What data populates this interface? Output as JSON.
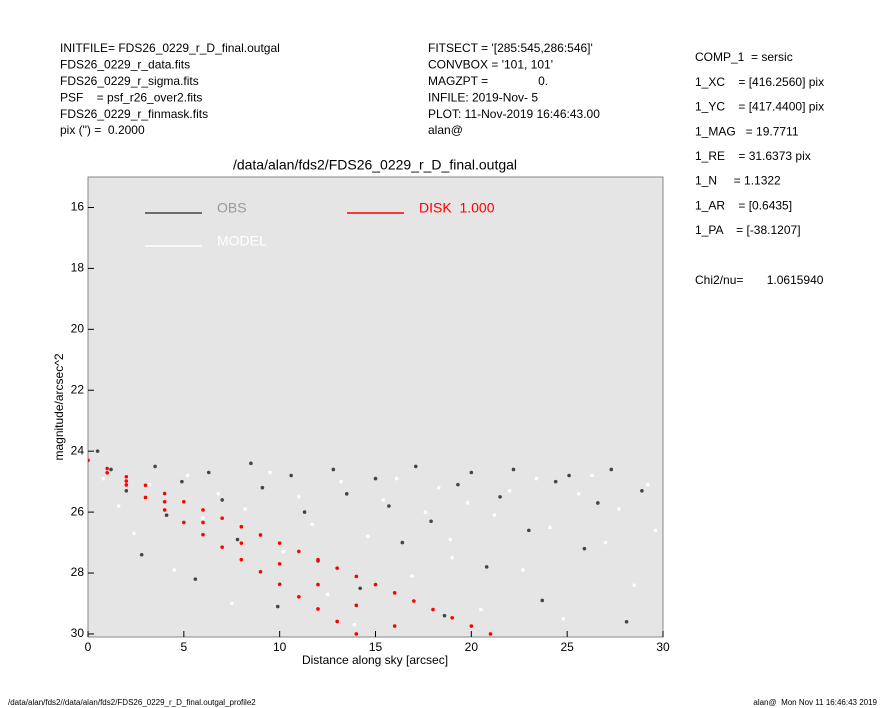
{
  "info_left": [
    "INITFILE= FDS26_0229_r_D_final.outgal",
    "FDS26_0229_r_data.fits",
    "FDS26_0229_r_sigma.fits",
    "PSF    = psf_r26_over2.fits",
    "FDS26_0229_r_finmask.fits",
    "pix (\") =  0.2000"
  ],
  "info_middle": [
    "FITSECT = '[285:545,286:546]'",
    "CONVBOX = '101, 101'",
    "MAGZPT =               0.",
    "INFILE: 2019-Nov- 5",
    "PLOT: 11-Nov-2019 16:46:43.00",
    "alan@"
  ],
  "info_right": [
    "COMP_1  = sersic",
    "1_XC    = [416.2560] pix",
    "1_YC    = [417.4400] pix",
    "1_MAG   = 19.7711",
    "1_RE    = 31.6373 pix",
    "1_N     = 1.1322",
    "1_AR    = [0.6435]",
    "1_PA    = [-38.1207]"
  ],
  "chi2": "Chi2/nu=       1.0615940",
  "footer_left": "/data/alan/fds2//data/alan/fds2/FDS26_0229_r_D_final.outgal_profile2",
  "footer_right": "alan@  Mon Nov 11 16:46:43 2019",
  "chart_data": {
    "type": "scatter",
    "title": "/data/alan/fds2/FDS26_0229_r_D_final.outgal",
    "xlabel": "Distance along sky [arcsec]",
    "ylabel": "magnitude/arcsec^2",
    "xlim": [
      0,
      30
    ],
    "ylim": [
      30.1,
      15
    ],
    "xticks": [
      0,
      5,
      10,
      15,
      20,
      25,
      30
    ],
    "yticks": [
      16,
      18,
      20,
      22,
      24,
      26,
      28,
      30
    ],
    "legend": "upper left",
    "background": "#e5e5e5",
    "series": [
      {
        "name": "OBS",
        "color": "#444444",
        "x": [
          0.5,
          1.2,
          2.0,
          2.8,
          3.5,
          4.1,
          4.9,
          5.6,
          6.3,
          7.0,
          7.8,
          8.5,
          9.1,
          9.9,
          10.6,
          11.3,
          12.0,
          12.8,
          13.5,
          14.2,
          15.0,
          15.7,
          16.4,
          17.1,
          17.9,
          18.6,
          19.3,
          20.0,
          20.8,
          21.5,
          22.2,
          23.0,
          23.7,
          24.4,
          25.1,
          25.9,
          26.6,
          27.3,
          28.1,
          28.9
        ],
        "values": [
          24.0,
          24.6,
          25.3,
          27.4,
          24.5,
          26.1,
          25.0,
          28.2,
          24.7,
          25.6,
          26.9,
          24.4,
          25.2,
          29.1,
          24.8,
          26.0,
          27.6,
          24.6,
          25.4,
          28.5,
          24.9,
          25.8,
          27.0,
          24.5,
          26.3,
          29.4,
          25.1,
          24.7,
          27.8,
          25.5,
          24.6,
          26.6,
          28.9,
          25.0,
          24.8,
          27.2,
          25.7,
          24.6,
          29.6,
          25.3
        ]
      },
      {
        "name": "MODEL",
        "color": "#ffffff",
        "x": [
          0.8,
          1.6,
          2.4,
          3.2,
          4.5,
          5.2,
          6.0,
          6.8,
          7.5,
          8.2,
          9.5,
          10.2,
          11.0,
          11.7,
          12.5,
          13.2,
          14.6,
          15.4,
          16.1,
          16.9,
          17.6,
          18.3,
          19.0,
          19.8,
          20.5,
          21.2,
          22.0,
          22.7,
          23.4,
          24.1,
          24.8,
          25.6,
          26.3,
          27.0,
          27.7,
          28.5,
          29.2,
          29.6,
          13.9,
          18.9
        ],
        "values": [
          24.9,
          25.8,
          26.7,
          25.1,
          27.9,
          24.8,
          26.2,
          25.4,
          29.0,
          25.9,
          24.7,
          27.3,
          25.5,
          26.4,
          28.7,
          25.0,
          26.8,
          25.6,
          24.9,
          28.1,
          26.0,
          25.2,
          27.5,
          25.7,
          29.2,
          26.1,
          25.3,
          27.9,
          24.9,
          26.5,
          29.5,
          25.4,
          24.8,
          27.0,
          25.9,
          28.4,
          25.1,
          26.6,
          29.7,
          26.9
        ]
      },
      {
        "name": "DISK  1.000",
        "color": "#ff0000",
        "x": [
          0,
          1,
          2,
          3,
          4,
          5,
          6,
          7,
          8,
          9,
          10,
          11,
          12,
          13,
          14,
          15,
          16,
          17,
          18,
          19,
          20,
          21,
          1,
          2,
          3,
          4,
          5,
          6,
          7,
          8,
          9,
          10,
          11,
          12,
          13,
          14,
          2,
          4,
          6,
          8,
          10,
          12,
          14,
          16
        ],
        "values": [
          24.3,
          24.57,
          24.84,
          25.12,
          25.39,
          25.66,
          25.93,
          26.2,
          26.48,
          26.75,
          27.02,
          27.29,
          27.56,
          27.84,
          28.11,
          28.38,
          28.65,
          28.92,
          29.2,
          29.47,
          29.74,
          30.0,
          24.71,
          25.11,
          25.52,
          25.93,
          26.34,
          26.74,
          27.15,
          27.56,
          27.96,
          28.37,
          28.78,
          29.18,
          29.59,
          30.0,
          24.98,
          25.66,
          26.34,
          27.02,
          27.7,
          28.38,
          29.06,
          29.74
        ]
      }
    ]
  }
}
